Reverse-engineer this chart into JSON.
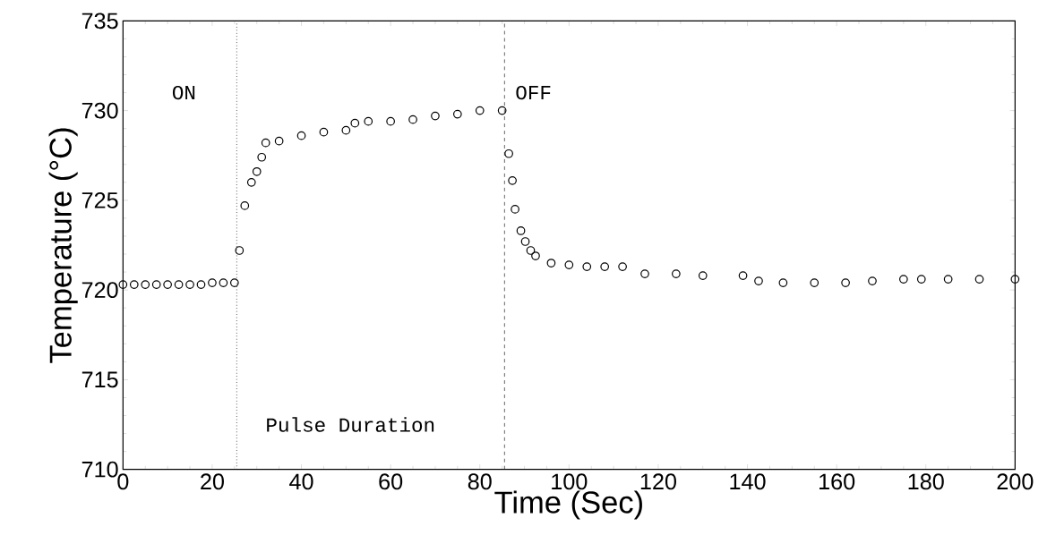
{
  "chart_data": {
    "type": "scatter",
    "xlabel": "Time (Sec)",
    "ylabel": "Temperature (°C)",
    "annotations": [
      "ON",
      "OFF",
      "Pulse Duration"
    ],
    "x": [
      0,
      2.5,
      5,
      7.5,
      10,
      12.5,
      15,
      17.5,
      20,
      22.5,
      25,
      26.1,
      27.3,
      28.8,
      30,
      31.1,
      32,
      35,
      40,
      45,
      50,
      52,
      55,
      60,
      65,
      70,
      75,
      80,
      85,
      86.5,
      87.3,
      87.9,
      89.2,
      90.2,
      91.4,
      92.5,
      96,
      100,
      104,
      108,
      112,
      117,
      124,
      130,
      139,
      142.5,
      148,
      155,
      162,
      168,
      175,
      179,
      185,
      192,
      200
    ],
    "series": [
      {
        "color": "#000000",
        "values": [
          720.3,
          720.3,
          720.3,
          720.3,
          720.3,
          720.3,
          720.3,
          720.3,
          720.4,
          720.4,
          720.4,
          722.2,
          724.7,
          726.0,
          726.6,
          727.4,
          728.2,
          728.3,
          728.6,
          728.8,
          728.9,
          729.3,
          729.4,
          729.4,
          729.5,
          729.7,
          729.8,
          730.0,
          730.0,
          727.6,
          726.1,
          724.5,
          723.3,
          722.7,
          722.2,
          721.9,
          721.5,
          721.4,
          721.3,
          721.3,
          721.3,
          720.9,
          720.9,
          720.8,
          720.8,
          720.5,
          720.4,
          720.4,
          720.4,
          720.5,
          720.6,
          720.6,
          720.6,
          720.6,
          720.6
        ]
      }
    ],
    "xlim": [
      0,
      200
    ],
    "ylim": [
      710,
      735
    ],
    "xticks": [
      0,
      20,
      40,
      60,
      80,
      100,
      120,
      140,
      160,
      180,
      200
    ],
    "yticks": [
      710,
      715,
      720,
      725,
      730,
      735
    ],
    "ref_lines": [
      {
        "axis": "x",
        "value": 25.5,
        "line_style": "dotted",
        "color": "#000000"
      },
      {
        "axis": "x",
        "value": 85.5,
        "line_style": "dashed",
        "color": "#000000"
      }
    ],
    "marker": "circle",
    "grid": false
  }
}
